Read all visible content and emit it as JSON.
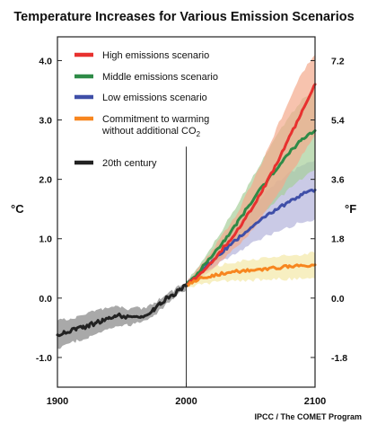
{
  "chart_data": {
    "type": "line",
    "title": "Temperature Increases for Various Emission Scenarios",
    "ylabel_left": "°C",
    "ylabel_right": "°F",
    "credit": "IPCC / The COMET Program",
    "xlim": [
      1900,
      2100
    ],
    "ylim": [
      -1.5,
      4.4
    ],
    "x_ticks": [
      "1900",
      "2000",
      "2100"
    ],
    "y_ticks_left": [
      "4.0",
      "3.0",
      "2.0",
      "1.0",
      "0.0",
      "-1.0"
    ],
    "y_ticks_left_values": [
      4.0,
      3.0,
      2.0,
      1.0,
      0.0,
      -1.0
    ],
    "y_ticks_right": [
      "7.2",
      "5.4",
      "3.6",
      "1.8",
      "0.0",
      "-1.8"
    ],
    "vertical_marker_x": 2000,
    "grid": false,
    "legend_position": "top-left",
    "legend": [
      {
        "label": "High emissions scenario",
        "color": "#e8312f"
      },
      {
        "label": "Middle emissions scenario",
        "color": "#2e8b47"
      },
      {
        "label": "Low emissions scenario",
        "color": "#3f4fa8"
      },
      {
        "label": "Commitment to warming",
        "label_line2": "without additional CO",
        "label_sub": "2",
        "color": "#f7861f"
      },
      {
        "label": "20th century",
        "color": "#222222"
      }
    ],
    "series": [
      {
        "name": "20th century",
        "color": "#222222",
        "band_color": "#9a9a9a",
        "x": [
          1900,
          1905,
          1910,
          1915,
          1920,
          1925,
          1930,
          1935,
          1940,
          1945,
          1950,
          1955,
          1960,
          1965,
          1970,
          1975,
          1980,
          1985,
          1990,
          1995,
          2000
        ],
        "y": [
          -0.62,
          -0.58,
          -0.55,
          -0.52,
          -0.5,
          -0.45,
          -0.42,
          -0.38,
          -0.33,
          -0.3,
          -0.3,
          -0.32,
          -0.28,
          -0.3,
          -0.25,
          -0.2,
          -0.1,
          0.0,
          0.05,
          0.15,
          0.2
        ],
        "lower": [
          -0.85,
          -0.8,
          -0.76,
          -0.72,
          -0.7,
          -0.64,
          -0.6,
          -0.55,
          -0.52,
          -0.48,
          -0.46,
          -0.46,
          -0.42,
          -0.42,
          -0.36,
          -0.3,
          -0.2,
          -0.1,
          -0.02,
          0.08,
          0.14
        ],
        "upper": [
          -0.38,
          -0.36,
          -0.34,
          -0.32,
          -0.28,
          -0.25,
          -0.22,
          -0.18,
          -0.15,
          -0.12,
          -0.14,
          -0.18,
          -0.14,
          -0.18,
          -0.14,
          -0.1,
          0.0,
          0.08,
          0.12,
          0.22,
          0.26
        ]
      },
      {
        "name": "High emissions scenario",
        "color": "#e8312f",
        "band_color": "#f3a98c",
        "x": [
          2000,
          2010,
          2020,
          2030,
          2040,
          2050,
          2060,
          2070,
          2080,
          2090,
          2100
        ],
        "y": [
          0.22,
          0.4,
          0.62,
          0.88,
          1.15,
          1.48,
          1.85,
          2.25,
          2.7,
          3.15,
          3.6
        ],
        "lower": [
          0.2,
          0.32,
          0.48,
          0.68,
          0.88,
          1.12,
          1.4,
          1.72,
          2.05,
          2.4,
          2.75
        ],
        "upper": [
          0.26,
          0.5,
          0.8,
          1.12,
          1.45,
          1.88,
          2.35,
          2.85,
          3.35,
          3.8,
          4.1
        ]
      },
      {
        "name": "Middle emissions scenario",
        "color": "#2e8b47",
        "band_color": "#a6cf9a",
        "x": [
          2000,
          2010,
          2020,
          2030,
          2040,
          2050,
          2060,
          2070,
          2080,
          2090,
          2100
        ],
        "y": [
          0.22,
          0.45,
          0.7,
          0.98,
          1.28,
          1.6,
          1.9,
          2.18,
          2.45,
          2.68,
          2.82
        ],
        "lower": [
          0.2,
          0.36,
          0.55,
          0.76,
          0.98,
          1.2,
          1.42,
          1.64,
          1.84,
          2.02,
          2.16
        ],
        "upper": [
          0.26,
          0.56,
          0.88,
          1.22,
          1.58,
          1.98,
          2.36,
          2.72,
          3.06,
          3.34,
          3.55
        ]
      },
      {
        "name": "Low emissions scenario",
        "color": "#3f4fa8",
        "band_color": "#b3b3db",
        "x": [
          2000,
          2010,
          2020,
          2030,
          2040,
          2050,
          2060,
          2070,
          2080,
          2090,
          2100
        ],
        "y": [
          0.22,
          0.4,
          0.62,
          0.82,
          1.0,
          1.18,
          1.35,
          1.5,
          1.62,
          1.75,
          1.82
        ],
        "lower": [
          0.2,
          0.33,
          0.5,
          0.65,
          0.78,
          0.9,
          1.02,
          1.12,
          1.2,
          1.28,
          1.33
        ],
        "upper": [
          0.26,
          0.5,
          0.78,
          1.04,
          1.28,
          1.52,
          1.74,
          1.94,
          2.1,
          2.24,
          2.32
        ]
      },
      {
        "name": "Commitment to warming without additional CO2",
        "color": "#f7861f",
        "band_color": "#f3e8a6",
        "x": [
          2000,
          2010,
          2020,
          2030,
          2040,
          2050,
          2060,
          2070,
          2080,
          2090,
          2100
        ],
        "y": [
          0.22,
          0.32,
          0.38,
          0.42,
          0.45,
          0.47,
          0.49,
          0.51,
          0.53,
          0.55,
          0.56
        ],
        "lower": [
          0.18,
          0.22,
          0.26,
          0.28,
          0.29,
          0.3,
          0.31,
          0.32,
          0.32,
          0.33,
          0.33
        ],
        "upper": [
          0.26,
          0.42,
          0.52,
          0.58,
          0.62,
          0.65,
          0.68,
          0.7,
          0.72,
          0.74,
          0.76
        ]
      }
    ]
  }
}
